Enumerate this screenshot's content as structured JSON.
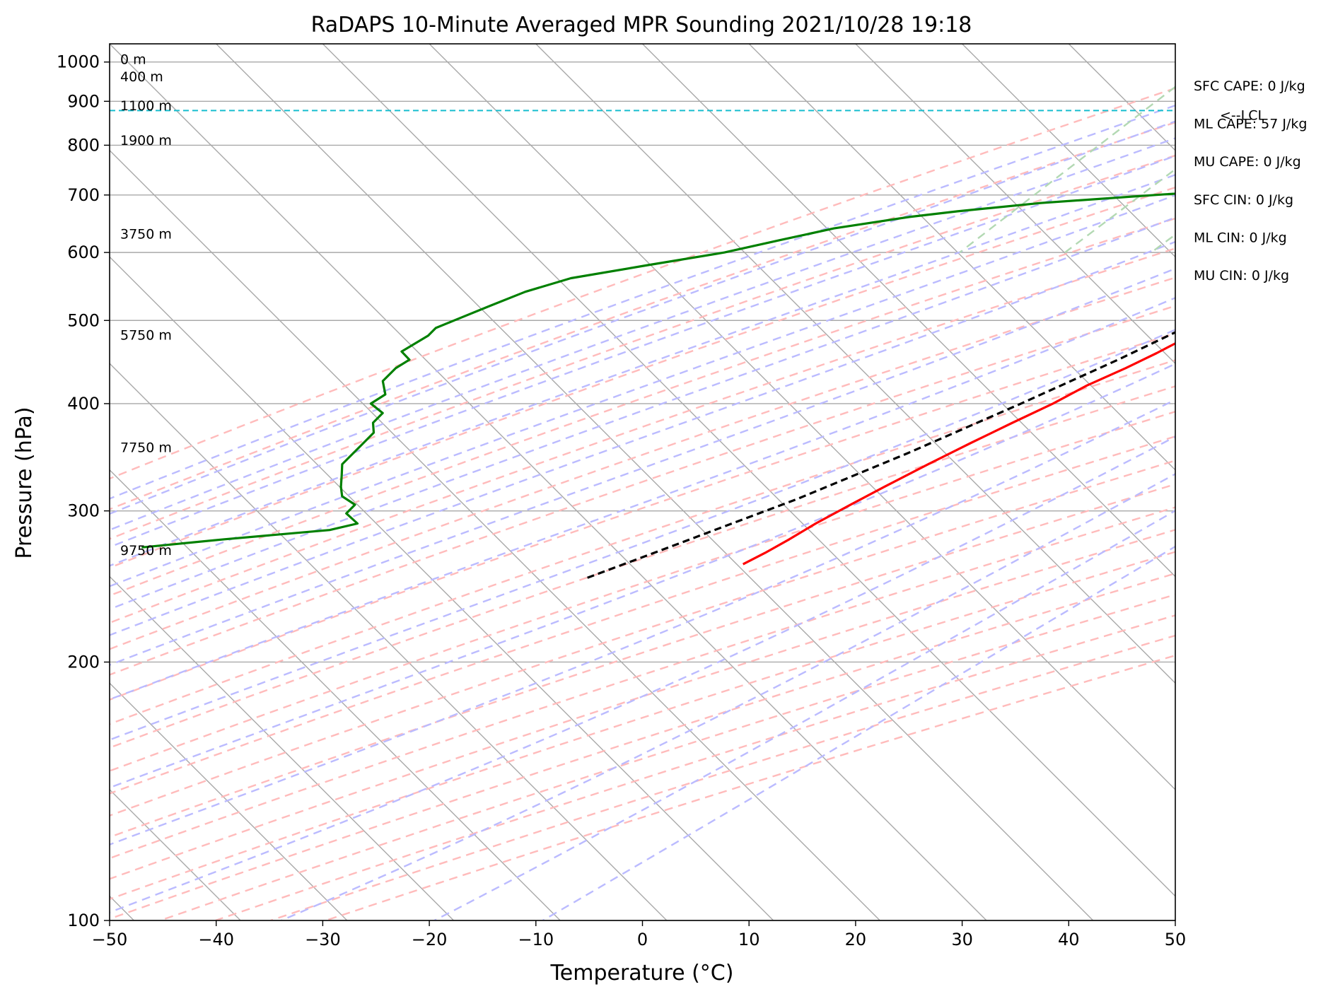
{
  "chart_data": {
    "type": "line",
    "subtype": "skew-t log-p sounding",
    "title": "RaDAPS 10-Minute Averaged MPR Sounding 2021/10/28 19:18",
    "xlabel": "Temperature (°C)",
    "ylabel": "Pressure (hPa)",
    "xlim": [
      -50,
      50
    ],
    "ylim": [
      1050,
      100
    ],
    "x_ticks": [
      -50,
      -40,
      -30,
      -20,
      -10,
      0,
      10,
      20,
      30,
      40,
      50
    ],
    "x_tick_labels": [
      "−50",
      "−40",
      "−30",
      "−20",
      "−10",
      "0",
      "10",
      "20",
      "30",
      "40",
      "50"
    ],
    "y_ticks": [
      100,
      200,
      300,
      400,
      500,
      600,
      700,
      800,
      900,
      1000
    ],
    "y_tick_labels": [
      "100",
      "200",
      "300",
      "400",
      "500",
      "600",
      "700",
      "800",
      "900",
      "1000"
    ],
    "y_scale": "log",
    "grid": true,
    "series": [
      {
        "role": "temperature",
        "color": "#ff0000",
        "points": [
          [
            20.2,
            970
          ],
          [
            18,
            962
          ],
          [
            16,
            950
          ],
          [
            15,
            935
          ],
          [
            14,
            918
          ],
          [
            13,
            900
          ],
          [
            12,
            880
          ],
          [
            11,
            855
          ],
          [
            10,
            820
          ],
          [
            9,
            780
          ],
          [
            8,
            740
          ],
          [
            7.5,
            700
          ],
          [
            6,
            670
          ],
          [
            4,
            640
          ],
          [
            3,
            615
          ],
          [
            2,
            585
          ],
          [
            1,
            560
          ],
          [
            -0.5,
            530
          ],
          [
            -2,
            505
          ],
          [
            -3.5,
            480
          ],
          [
            -5,
            458
          ],
          [
            -6.5,
            440
          ],
          [
            -8.5,
            420
          ],
          [
            -10,
            400
          ],
          [
            -12,
            380
          ],
          [
            -14,
            360
          ],
          [
            -16,
            340
          ],
          [
            -18,
            320
          ],
          [
            -19.5,
            305
          ],
          [
            -21,
            290
          ],
          [
            -22,
            278
          ],
          [
            -23,
            268
          ],
          [
            -24,
            260
          ]
        ]
      },
      {
        "role": "dewpoint",
        "color": "#008000",
        "points": [
          [
            13,
            970
          ],
          [
            13,
            960
          ],
          [
            13,
            948
          ],
          [
            14,
            938
          ],
          [
            14.5,
            930
          ],
          [
            14.5,
            920
          ],
          [
            13.5,
            905
          ],
          [
            12,
            890
          ],
          [
            10,
            870
          ],
          [
            9,
            850
          ],
          [
            8,
            835
          ],
          [
            7,
            815
          ],
          [
            6,
            795
          ],
          [
            5,
            775
          ],
          [
            4,
            755
          ],
          [
            1,
            740
          ],
          [
            -6,
            720
          ],
          [
            -20,
            700
          ],
          [
            -30,
            685
          ],
          [
            -37,
            670
          ],
          [
            -41,
            660
          ],
          [
            -47,
            640
          ],
          [
            -51,
            620
          ],
          [
            -55,
            600
          ],
          [
            -61,
            580
          ],
          [
            -67,
            560
          ],
          [
            -70,
            540
          ],
          [
            -72,
            520
          ],
          [
            -74,
            500
          ],
          [
            -75,
            490
          ],
          [
            -75,
            480
          ],
          [
            -76,
            460
          ],
          [
            -74.5,
            450
          ],
          [
            -75,
            440
          ],
          [
            -75,
            425
          ],
          [
            -73.5,
            410
          ],
          [
            -74,
            400
          ],
          [
            -72,
            390
          ],
          [
            -72,
            380
          ],
          [
            -71,
            370
          ],
          [
            -71,
            355
          ],
          [
            -71,
            340
          ],
          [
            -70,
            330
          ],
          [
            -69,
            320
          ],
          [
            -68,
            312
          ],
          [
            -66,
            305
          ],
          [
            -66,
            298
          ],
          [
            -64,
            290
          ],
          [
            -66,
            285
          ],
          [
            -75,
            278
          ],
          [
            -82,
            272
          ]
        ]
      },
      {
        "role": "parcel",
        "color": "#000000",
        "points": [
          [
            20.2,
            970
          ],
          [
            16.5,
            930
          ],
          [
            13.2,
            880
          ],
          [
            11.5,
            840
          ],
          [
            10.2,
            800
          ],
          [
            9,
            760
          ],
          [
            7.5,
            700
          ],
          [
            5.5,
            650
          ],
          [
            3,
            600
          ],
          [
            -0.5,
            550
          ],
          [
            -4,
            500
          ],
          [
            -8,
            450
          ],
          [
            -13,
            400
          ],
          [
            -19,
            350
          ],
          [
            -25,
            310
          ],
          [
            -33,
            270
          ],
          [
            -37.5,
            250
          ]
        ]
      }
    ],
    "lcl_pressure": 878,
    "lcl_label": "<--LCL",
    "height_labels": [
      {
        "label": "9750 m",
        "p": 270
      },
      {
        "label": "7750 m",
        "p": 356
      },
      {
        "label": "5750 m",
        "p": 481
      },
      {
        "label": "3750 m",
        "p": 631
      },
      {
        "label": "1900 m",
        "p": 811
      },
      {
        "label": "1100 m",
        "p": 890
      },
      {
        "label": "400 m",
        "p": 962
      },
      {
        "label": "0 m",
        "p": 1008
      }
    ],
    "indices": [
      {
        "label": "SFC CAPE: 0 J/kg"
      },
      {
        "label": "ML CAPE: 57 J/kg"
      },
      {
        "label": "MU CAPE: 0 J/kg"
      },
      {
        "label": "SFC CIN: 0 J/kg"
      },
      {
        "label": "ML CIN: 0 J/kg"
      },
      {
        "label": "MU CIN: 0 J/kg"
      }
    ],
    "background_lines": {
      "isotherms_color": "#a9a9a9",
      "dry_adiabats_color": "#ffbbbb",
      "moist_adiabats_color": "#bbbbff",
      "mixing_ratio_color": "#b3d9b3",
      "lcl_color": "#17becf"
    }
  }
}
